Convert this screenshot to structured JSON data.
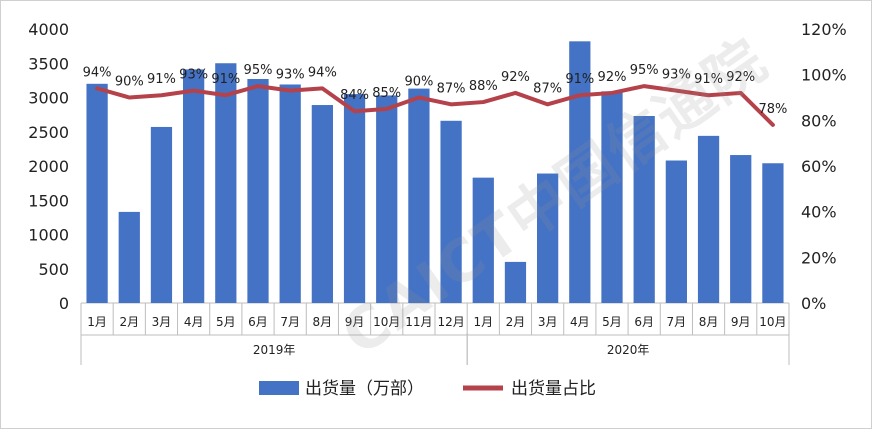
{
  "watermark": "CAICT中国信通院",
  "chart_data": {
    "type": "bar",
    "categories": [
      "1月",
      "2月",
      "3月",
      "4月",
      "5月",
      "6月",
      "7月",
      "8月",
      "9月",
      "10月",
      "11月",
      "12月",
      "1月",
      "2月",
      "3月",
      "4月",
      "5月",
      "6月",
      "7月",
      "8月",
      "9月",
      "10月"
    ],
    "groups": [
      {
        "label": "2019年",
        "start": 0,
        "end": 11
      },
      {
        "label": "2020年",
        "start": 12,
        "end": 21
      }
    ],
    "series": [
      {
        "name": "出货量（万部）",
        "type": "bar",
        "axis": "left",
        "color": "#4472C4",
        "values": [
          3200,
          1330,
          2570,
          3410,
          3500,
          3270,
          3190,
          2890,
          3050,
          3030,
          3130,
          2660,
          1830,
          600,
          1890,
          3820,
          3090,
          2730,
          2080,
          2440,
          2160,
          2040
        ]
      },
      {
        "name": "出货量占比",
        "type": "line",
        "axis": "right",
        "color": "#B5424A",
        "values": [
          94,
          90,
          91,
          93,
          91,
          95,
          93,
          94,
          84,
          85,
          90,
          87,
          88,
          92,
          87,
          91,
          92,
          95,
          93,
          91,
          92,
          78
        ],
        "labels": [
          "94%",
          "90%",
          "91%",
          "93%",
          "91%",
          "95%",
          "93%",
          "94%",
          "84%",
          "85%",
          "90%",
          "87%",
          "88%",
          "92%",
          "87%",
          "91%",
          "92%",
          "95%",
          "93%",
          "91%",
          "92%",
          "78%"
        ]
      }
    ],
    "y_left": {
      "min": 0,
      "max": 4000,
      "ticks": [
        "0",
        "500",
        "1000",
        "1500",
        "2000",
        "2500",
        "3000",
        "3500",
        "4000"
      ]
    },
    "y_right": {
      "min": 0,
      "max": 120,
      "ticks": [
        "0%",
        "20%",
        "40%",
        "60%",
        "80%",
        "100%",
        "120%"
      ]
    },
    "grid": false,
    "legend_position": "bottom"
  }
}
